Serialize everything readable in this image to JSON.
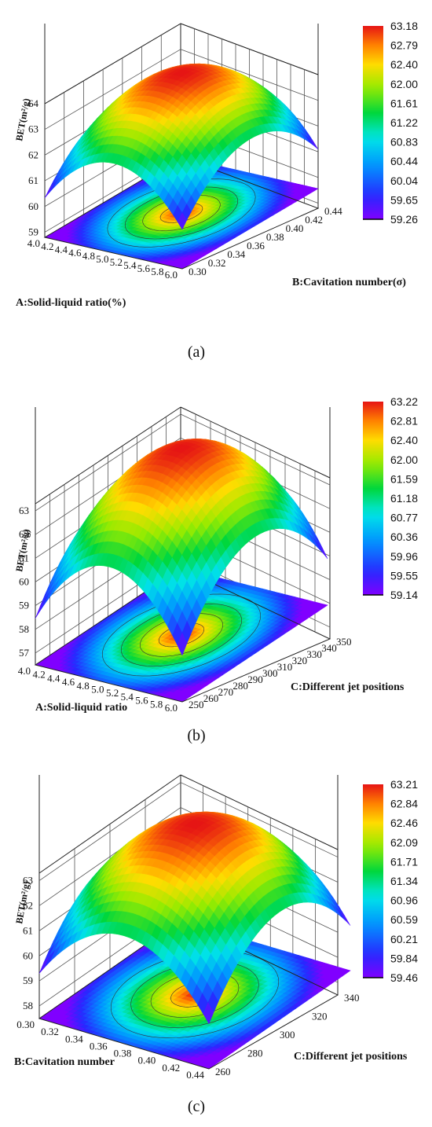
{
  "chart_data": [
    {
      "type": "surface3d",
      "panel_label": "a",
      "zlabel": "BET(m²/g)",
      "xlabel": "A:Solid-liquid ratio(%)",
      "ylabel": "B:Cavitation number(σ)",
      "x_ticks": [
        "4.0",
        "4.2",
        "4.4",
        "4.6",
        "4.8",
        "5.0",
        "5.2",
        "5.4",
        "5.6",
        "5.8",
        "6.0"
      ],
      "y_ticks": [
        "0.30",
        "0.32",
        "0.34",
        "0.36",
        "0.38",
        "0.40",
        "0.42",
        "0.44"
      ],
      "z_ticks": [
        "59",
        "60",
        "61",
        "62",
        "63",
        "64"
      ],
      "xlim": [
        4.0,
        6.0
      ],
      "ylim": [
        0.3,
        0.44
      ],
      "zlim": [
        58.8,
        64
      ],
      "colorbar": [
        "63.18",
        "62.79",
        "62.40",
        "62.00",
        "61.61",
        "61.22",
        "60.83",
        "60.44",
        "60.04",
        "59.65",
        "59.26"
      ],
      "zmax": 63.18,
      "zmin": 59.26,
      "surface_order": [
        "A",
        "B"
      ]
    },
    {
      "type": "surface3d",
      "panel_label": "b",
      "zlabel": "BET(m²/g)",
      "xlabel": "A:Solid-liquid ratio",
      "ylabel": "C:Different jet positions",
      "x_ticks": [
        "4.0",
        "4.2",
        "4.4",
        "4.6",
        "4.8",
        "5.0",
        "5.2",
        "5.4",
        "5.6",
        "5.8",
        "6.0"
      ],
      "y_ticks": [
        "250",
        "260",
        "270",
        "280",
        "290",
        "300",
        "310",
        "320",
        "330",
        "340",
        "350"
      ],
      "z_ticks": [
        "57",
        "58",
        "59",
        "60",
        "61",
        "62",
        "63"
      ],
      "xlim": [
        4.0,
        6.0
      ],
      "ylim": [
        250,
        350
      ],
      "zlim": [
        56.5,
        63.3
      ],
      "colorbar": [
        "63.22",
        "62.81",
        "62.40",
        "62.00",
        "61.59",
        "61.18",
        "60.77",
        "60.36",
        "59.96",
        "59.55",
        "59.14"
      ],
      "zmax": 63.22,
      "zmin": 57.3,
      "surface_order": [
        "A",
        "C"
      ]
    },
    {
      "type": "surface3d",
      "panel_label": "c",
      "zlabel": "BET(m²/g)",
      "xlabel": "B:Cavitation number",
      "ylabel": "C:Different jet positions",
      "x_ticks": [
        "0.30",
        "0.32",
        "0.34",
        "0.36",
        "0.38",
        "0.40",
        "0.42",
        "0.44"
      ],
      "y_ticks": [
        "260",
        "280",
        "300",
        "320",
        "340"
      ],
      "z_ticks": [
        "58",
        "59",
        "60",
        "61",
        "62",
        "63"
      ],
      "xlim": [
        0.3,
        0.44
      ],
      "ylim": [
        250,
        350
      ],
      "zlim": [
        57.5,
        63.3
      ],
      "colorbar": [
        "63.21",
        "62.84",
        "62.46",
        "62.09",
        "61.71",
        "61.34",
        "60.96",
        "60.59",
        "60.21",
        "59.84",
        "59.46"
      ],
      "zmax": 63.21,
      "zmin": 58.2,
      "surface_order": [
        "B",
        "C"
      ]
    }
  ],
  "captions": [
    "(a)",
    "(b)",
    "(c)"
  ]
}
